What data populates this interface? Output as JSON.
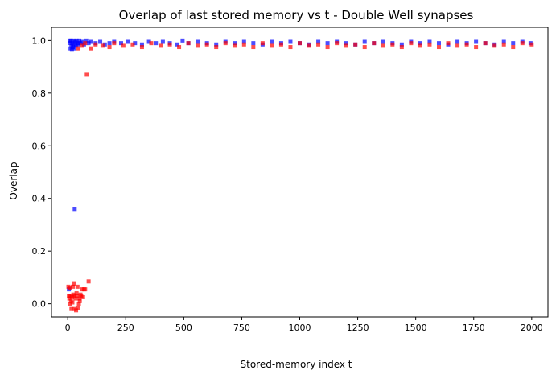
{
  "chart_data": {
    "type": "scatter",
    "title": "Overlap of last stored memory vs t  - Double Well synapses",
    "xlabel": "Stored-memory index t",
    "ylabel": "Overlap",
    "xlim": [
      -70,
      2070
    ],
    "ylim": [
      -0.05,
      1.05
    ],
    "xticks": [
      0,
      250,
      500,
      750,
      1000,
      1250,
      1500,
      1750,
      2000
    ],
    "yticks": [
      0.0,
      0.2,
      0.4,
      0.6,
      0.8,
      1.0
    ],
    "xtick_labels": [
      "0",
      "250",
      "500",
      "750",
      "1000",
      "1250",
      "1500",
      "1750",
      "2000"
    ],
    "ytick_labels": [
      "0.0",
      "0.2",
      "0.4",
      "0.6",
      "0.8",
      "1.0"
    ],
    "grid": false,
    "marker": "square",
    "series": [
      {
        "color": "#0000ff",
        "opacity": 0.7,
        "points": [
          [
            5,
            0.055
          ],
          [
            8,
            1.0
          ],
          [
            10,
            0.99
          ],
          [
            12,
            0.97
          ],
          [
            14,
            1.0
          ],
          [
            16,
            0.98
          ],
          [
            18,
            0.965
          ],
          [
            20,
            0.99
          ],
          [
            22,
            0.975
          ],
          [
            24,
            1.0
          ],
          [
            26,
            0.985
          ],
          [
            28,
            0.97
          ],
          [
            30,
            0.36
          ],
          [
            32,
            0.995
          ],
          [
            35,
            0.98
          ],
          [
            38,
            1.0
          ],
          [
            42,
            0.99
          ],
          [
            46,
            0.985
          ],
          [
            50,
            1.0
          ],
          [
            55,
            0.99
          ],
          [
            60,
            0.995
          ],
          [
            70,
            0.985
          ],
          [
            80,
            1.0
          ],
          [
            90,
            0.99
          ],
          [
            100,
            0.995
          ],
          [
            120,
            0.99
          ],
          [
            140,
            0.995
          ],
          [
            160,
            0.985
          ],
          [
            180,
            0.99
          ],
          [
            200,
            0.995
          ],
          [
            230,
            0.99
          ],
          [
            260,
            0.995
          ],
          [
            290,
            0.99
          ],
          [
            320,
            0.985
          ],
          [
            350,
            0.995
          ],
          [
            380,
            0.99
          ],
          [
            410,
            0.995
          ],
          [
            440,
            0.99
          ],
          [
            470,
            0.985
          ],
          [
            495,
            1.0
          ],
          [
            520,
            0.99
          ],
          [
            560,
            0.995
          ],
          [
            600,
            0.99
          ],
          [
            640,
            0.985
          ],
          [
            680,
            0.995
          ],
          [
            720,
            0.99
          ],
          [
            760,
            0.995
          ],
          [
            800,
            0.99
          ],
          [
            840,
            0.985
          ],
          [
            880,
            0.995
          ],
          [
            920,
            0.99
          ],
          [
            960,
            0.995
          ],
          [
            1000,
            0.99
          ],
          [
            1040,
            0.985
          ],
          [
            1080,
            0.995
          ],
          [
            1120,
            0.99
          ],
          [
            1160,
            0.995
          ],
          [
            1200,
            0.99
          ],
          [
            1240,
            0.985
          ],
          [
            1280,
            0.995
          ],
          [
            1320,
            0.99
          ],
          [
            1360,
            0.995
          ],
          [
            1400,
            0.99
          ],
          [
            1440,
            0.985
          ],
          [
            1480,
            0.995
          ],
          [
            1520,
            0.99
          ],
          [
            1560,
            0.995
          ],
          [
            1600,
            0.99
          ],
          [
            1640,
            0.985
          ],
          [
            1680,
            0.995
          ],
          [
            1720,
            0.99
          ],
          [
            1760,
            0.995
          ],
          [
            1800,
            0.99
          ],
          [
            1840,
            0.985
          ],
          [
            1880,
            0.995
          ],
          [
            1920,
            0.99
          ],
          [
            1960,
            0.995
          ],
          [
            1995,
            0.99
          ]
        ]
      },
      {
        "color": "#ff0000",
        "opacity": 0.7,
        "points": [
          [
            3,
            0.065
          ],
          [
            5,
            0.03
          ],
          [
            7,
            0.02
          ],
          [
            9,
            0.0
          ],
          [
            10,
            0.06
          ],
          [
            12,
            0.03
          ],
          [
            14,
            0.01
          ],
          [
            16,
            -0.02
          ],
          [
            18,
            0.025
          ],
          [
            20,
            0.005
          ],
          [
            22,
            0.065
          ],
          [
            24,
            0.035
          ],
          [
            26,
            0.03
          ],
          [
            28,
            0.075
          ],
          [
            30,
            -0.02
          ],
          [
            33,
            0.02
          ],
          [
            36,
            -0.025
          ],
          [
            38,
            0.04
          ],
          [
            40,
            0.03
          ],
          [
            42,
            0.065
          ],
          [
            45,
            -0.015
          ],
          [
            48,
            0.0
          ],
          [
            50,
            0.02
          ],
          [
            52,
            0.01
          ],
          [
            55,
            0.035
          ],
          [
            58,
            0.03
          ],
          [
            62,
            0.055
          ],
          [
            66,
            0.025
          ],
          [
            70,
            0.055
          ],
          [
            75,
            0.055
          ],
          [
            82,
            0.87
          ],
          [
            90,
            0.085
          ],
          [
            45,
            0.97
          ],
          [
            60,
            0.98
          ],
          [
            75,
            0.99
          ],
          [
            100,
            0.97
          ],
          [
            120,
            0.985
          ],
          [
            150,
            0.98
          ],
          [
            180,
            0.975
          ],
          [
            200,
            0.99
          ],
          [
            240,
            0.98
          ],
          [
            280,
            0.985
          ],
          [
            320,
            0.975
          ],
          [
            360,
            0.99
          ],
          [
            400,
            0.98
          ],
          [
            440,
            0.985
          ],
          [
            480,
            0.975
          ],
          [
            520,
            0.99
          ],
          [
            560,
            0.98
          ],
          [
            600,
            0.985
          ],
          [
            640,
            0.975
          ],
          [
            680,
            0.99
          ],
          [
            720,
            0.98
          ],
          [
            760,
            0.985
          ],
          [
            800,
            0.975
          ],
          [
            840,
            0.99
          ],
          [
            880,
            0.98
          ],
          [
            920,
            0.985
          ],
          [
            960,
            0.975
          ],
          [
            1000,
            0.99
          ],
          [
            1040,
            0.98
          ],
          [
            1080,
            0.985
          ],
          [
            1120,
            0.975
          ],
          [
            1160,
            0.99
          ],
          [
            1200,
            0.98
          ],
          [
            1240,
            0.985
          ],
          [
            1280,
            0.975
          ],
          [
            1320,
            0.99
          ],
          [
            1360,
            0.98
          ],
          [
            1400,
            0.985
          ],
          [
            1440,
            0.975
          ],
          [
            1480,
            0.99
          ],
          [
            1520,
            0.98
          ],
          [
            1560,
            0.985
          ],
          [
            1600,
            0.975
          ],
          [
            1640,
            0.99
          ],
          [
            1680,
            0.98
          ],
          [
            1720,
            0.985
          ],
          [
            1760,
            0.975
          ],
          [
            1800,
            0.99
          ],
          [
            1840,
            0.98
          ],
          [
            1880,
            0.985
          ],
          [
            1920,
            0.975
          ],
          [
            1960,
            0.99
          ],
          [
            2000,
            0.985
          ]
        ]
      }
    ]
  }
}
